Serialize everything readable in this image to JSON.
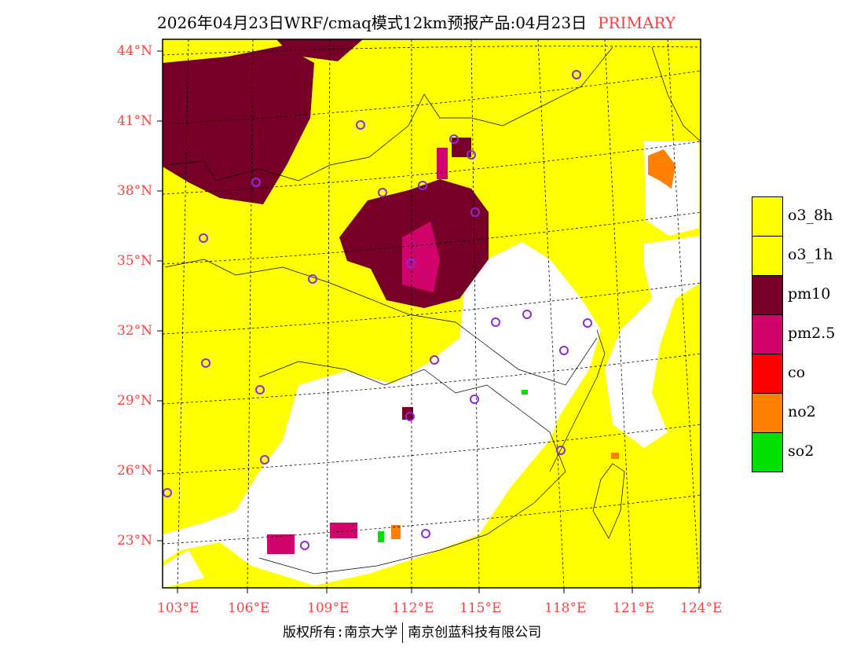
{
  "title": {
    "main": "2026年04月23日WRF/cmaq模式12km预报产品:04月23日",
    "tag": "PRIMARY"
  },
  "lat_labels": [
    "44°N",
    "41°N",
    "38°N",
    "35°N",
    "32°N",
    "29°N",
    "26°N",
    "23°N"
  ],
  "lon_labels": [
    "103°E",
    "106°E",
    "109°E",
    "112°E",
    "115°E",
    "118°E",
    "121°E",
    "124°E"
  ],
  "legend": [
    {
      "label": "o3_8h",
      "color": "#ffff00"
    },
    {
      "label": "o3_1h",
      "color": "#ffff00"
    },
    {
      "label": "pm10",
      "color": "#780028"
    },
    {
      "label": "pm2.5",
      "color": "#d0046c"
    },
    {
      "label": "co",
      "color": "#ff0000"
    },
    {
      "label": "no2",
      "color": "#ff7f00"
    },
    {
      "label": "so2",
      "color": "#00e000"
    }
  ],
  "footer": {
    "left": "版权所有:南京大学",
    "right": "南京创蓝科技有限公司"
  }
}
